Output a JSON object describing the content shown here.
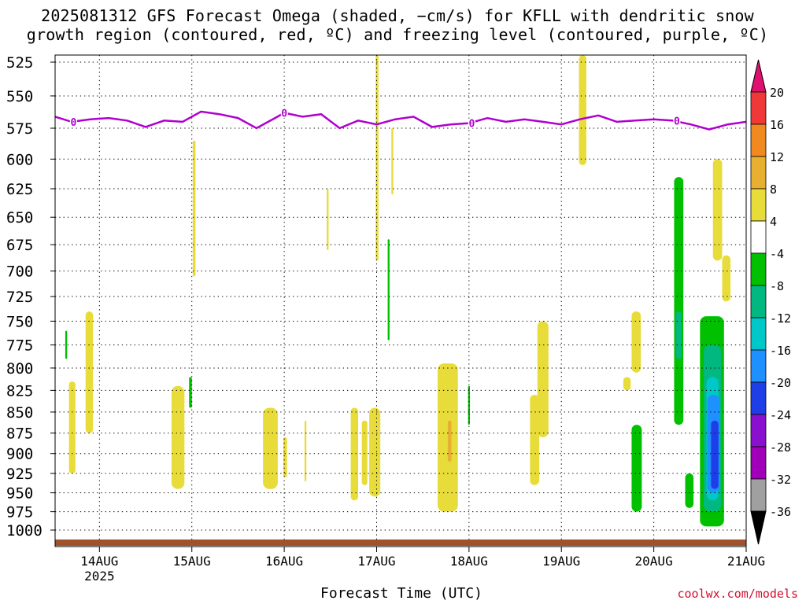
{
  "title_line1": "2025081312 GFS Forecast Omega (shaded, −cm/s) for KFLL with dendritic snow",
  "title_line2": "growth region (contoured, red, ºC) and freezing level (contoured, purple, ºC)",
  "credit": "coolwx.com/models",
  "chart_data": {
    "type": "heatmap",
    "title": "2025081312 GFS Forecast Omega (shaded, −cm/s) for KFLL with dendritic snow growth region (contoured, red, ºC) and freezing level (contoured, purple, ºC)",
    "xlabel": "Forecast Time (UTC)",
    "ylabel": "",
    "x_ticks": [
      "14AUG",
      "15AUG",
      "16AUG",
      "17AUG",
      "18AUG",
      "19AUG",
      "20AUG",
      "21AUG"
    ],
    "x_year_label": "2025",
    "x_range_days": [
      13.52,
      21.0
    ],
    "y_ticks": [
      525,
      550,
      575,
      600,
      625,
      650,
      675,
      700,
      725,
      750,
      775,
      800,
      825,
      850,
      875,
      900,
      925,
      950,
      975,
      1000
    ],
    "y_range_hPa": [
      520,
      1020
    ],
    "y_scale": "log-pressure",
    "grid": true,
    "colorbar": {
      "labels": [
        "20",
        "16",
        "12",
        "8",
        "4",
        "-4",
        "-8",
        "-12",
        "-16",
        "-20",
        "-24",
        "-28",
        "-32",
        "-36"
      ],
      "colors": [
        "#f03060",
        "#f03838",
        "#f08a20",
        "#e8b030",
        "#e8dc3a",
        "#ffffff",
        "#00c000",
        "#00b880",
        "#00c8c8",
        "#1e90ff",
        "#1e3ee8",
        "#8a10d0",
        "#a000b8",
        "#a0a0a0",
        "#000000"
      ],
      "top_arrow_color": "#e0106e",
      "bottom_arrow_color": "#000000"
    },
    "colors": {
      "ground": "#a0522d",
      "freezing_level": "#b000d0",
      "grid": "#000000"
    },
    "freezing_level": {
      "contour_label": "0",
      "x": [
        13.52,
        13.7,
        13.9,
        14.1,
        14.3,
        14.5,
        14.7,
        14.9,
        15.1,
        15.3,
        15.5,
        15.7,
        15.9,
        16.0,
        16.2,
        16.4,
        16.6,
        16.8,
        17.0,
        17.2,
        17.4,
        17.6,
        17.8,
        18.0,
        18.2,
        18.4,
        18.6,
        18.8,
        19.0,
        19.2,
        19.4,
        19.6,
        19.8,
        20.0,
        20.2,
        20.4,
        20.6,
        20.8,
        21.0
      ],
      "p": [
        566,
        570,
        568,
        567,
        569,
        574,
        569,
        570,
        562,
        564,
        567,
        575,
        567,
        563,
        566,
        564,
        575,
        569,
        572,
        568,
        566,
        574,
        572,
        571,
        567,
        570,
        568,
        570,
        572,
        568,
        565,
        570,
        569,
        568,
        569,
        572,
        576,
        572,
        570
      ]
    },
    "regions": [
      {
        "label": "4",
        "x0": 13.67,
        "x1": 13.74,
        "p0": 815,
        "p1": 925
      },
      {
        "label": "4",
        "x0": 13.85,
        "x1": 13.93,
        "p0": 740,
        "p1": 875
      },
      {
        "label": "-4",
        "x0": 13.63,
        "x1": 13.65,
        "p0": 760,
        "p1": 790
      },
      {
        "label": "4",
        "x0": 14.78,
        "x1": 14.92,
        "p0": 820,
        "p1": 945
      },
      {
        "label": "-4",
        "x0": 14.97,
        "x1": 15.0,
        "p0": 810,
        "p1": 845
      },
      {
        "label": "4",
        "x0": 15.01,
        "x1": 15.04,
        "p0": 585,
        "p1": 705
      },
      {
        "label": "4",
        "x0": 15.77,
        "x1": 15.93,
        "p0": 845,
        "p1": 945
      },
      {
        "label": "4",
        "x0": 15.99,
        "x1": 16.03,
        "p0": 880,
        "p1": 930
      },
      {
        "label": "4",
        "x0": 16.22,
        "x1": 16.24,
        "p0": 860,
        "p1": 935
      },
      {
        "label": "4",
        "x0": 16.46,
        "x1": 16.48,
        "p0": 625,
        "p1": 680
      },
      {
        "label": "4",
        "x0": 16.72,
        "x1": 16.8,
        "p0": 845,
        "p1": 960
      },
      {
        "label": "4",
        "x0": 16.84,
        "x1": 16.9,
        "p0": 860,
        "p1": 940
      },
      {
        "label": "4",
        "x0": 16.92,
        "x1": 17.04,
        "p0": 845,
        "p1": 955
      },
      {
        "label": "4",
        "x0": 16.99,
        "x1": 17.02,
        "p0": 520,
        "p1": 690
      },
      {
        "label": "4",
        "x0": 17.16,
        "x1": 17.18,
        "p0": 575,
        "p1": 630
      },
      {
        "label": "-4",
        "x0": 17.12,
        "x1": 17.14,
        "p0": 670,
        "p1": 770
      },
      {
        "label": "4",
        "x0": 17.66,
        "x1": 17.88,
        "p0": 795,
        "p1": 975
      },
      {
        "label": "8",
        "x0": 17.77,
        "x1": 17.81,
        "p0": 860,
        "p1": 910
      },
      {
        "label": "-4",
        "x0": 17.99,
        "x1": 18.01,
        "p0": 820,
        "p1": 865
      },
      {
        "label": "4",
        "x0": 18.66,
        "x1": 18.76,
        "p0": 830,
        "p1": 940
      },
      {
        "label": "4",
        "x0": 18.74,
        "x1": 18.86,
        "p0": 750,
        "p1": 880
      },
      {
        "label": "4",
        "x0": 19.19,
        "x1": 19.27,
        "p0": 520,
        "p1": 605
      },
      {
        "label": "4",
        "x0": 19.76,
        "x1": 19.86,
        "p0": 740,
        "p1": 805
      },
      {
        "label": "4",
        "x0": 19.67,
        "x1": 19.75,
        "p0": 810,
        "p1": 825
      },
      {
        "label": "-4",
        "x0": 19.76,
        "x1": 19.87,
        "p0": 865,
        "p1": 975
      },
      {
        "label": "-4",
        "x0": 20.22,
        "x1": 20.32,
        "p0": 615,
        "p1": 865
      },
      {
        "label": "-8",
        "x0": 20.24,
        "x1": 20.3,
        "p0": 740,
        "p1": 790
      },
      {
        "label": "-4",
        "x0": 20.34,
        "x1": 20.43,
        "p0": 925,
        "p1": 970
      },
      {
        "label": "4",
        "x0": 20.64,
        "x1": 20.74,
        "p0": 600,
        "p1": 690
      },
      {
        "label": "4",
        "x0": 20.74,
        "x1": 20.83,
        "p0": 685,
        "p1": 730
      },
      {
        "label": "-4",
        "x0": 20.5,
        "x1": 20.76,
        "p0": 745,
        "p1": 995
      },
      {
        "label": "-8",
        "x0": 20.54,
        "x1": 20.73,
        "p0": 775,
        "p1": 975
      },
      {
        "label": "-12",
        "x0": 20.57,
        "x1": 20.7,
        "p0": 810,
        "p1": 960
      },
      {
        "label": "-16",
        "x0": 20.58,
        "x1": 20.71,
        "p0": 830,
        "p1": 950
      },
      {
        "label": "-20",
        "x0": 20.62,
        "x1": 20.7,
        "p0": 860,
        "p1": 945
      },
      {
        "label": "-24",
        "x0": 20.64,
        "x1": 20.69,
        "p0": 870,
        "p1": 935
      }
    ]
  }
}
